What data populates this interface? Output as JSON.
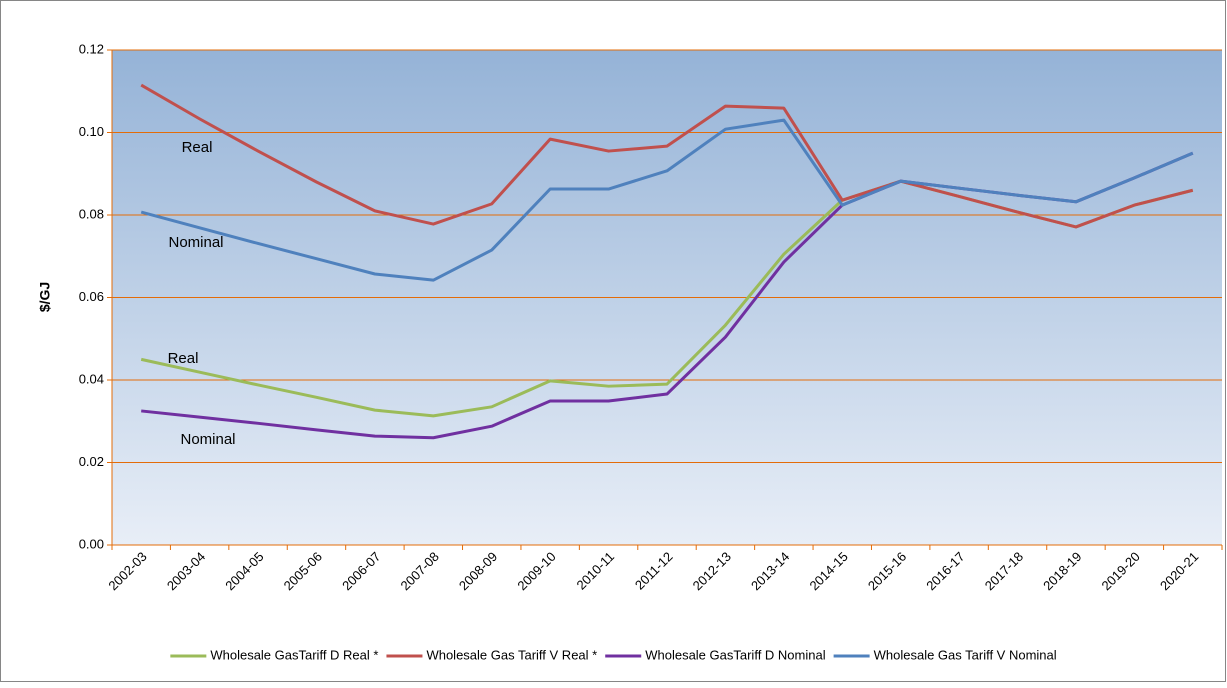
{
  "chart_data": {
    "type": "line",
    "ylabel": "$/GJ",
    "categories": [
      "2002-03",
      "2003-04",
      "2004-05",
      "2005-06",
      "2006-07",
      "2007-08",
      "2008-09",
      "2009-10",
      "2010-11",
      "2011-12",
      "2012-13",
      "2013-14",
      "2014-15",
      "2015-16",
      "2016-17",
      "2017-18",
      "2018-19",
      "2019-20",
      "2020-21"
    ],
    "series": [
      {
        "name": "Wholesale GasTariff D Real *",
        "color": "#9bbb59",
        "values": [
          0.045,
          0.0419,
          0.0388,
          0.0358,
          0.0327,
          0.0313,
          0.0335,
          0.0398,
          0.0385,
          0.039,
          0.0533,
          0.0705,
          0.0836,
          0.0882,
          0.0845,
          0.0807,
          0.0771,
          0.0824,
          0.086
        ]
      },
      {
        "name": "Wholesale Gas Tariff V Real *",
        "color": "#c0504d",
        "values": [
          0.1115,
          0.1033,
          0.0955,
          0.088,
          0.081,
          0.0778,
          0.0827,
          0.0984,
          0.0955,
          0.0967,
          0.1064,
          0.1059,
          0.0836,
          0.0882,
          0.0845,
          0.0807,
          0.0771,
          0.0824,
          0.086
        ]
      },
      {
        "name": "Wholesale GasTariff D Nominal",
        "color": "#7030a0",
        "values": [
          0.0325,
          0.031,
          0.0295,
          0.0279,
          0.0264,
          0.026,
          0.0288,
          0.0349,
          0.0349,
          0.0366,
          0.0504,
          0.0686,
          0.0824,
          0.0882,
          0.0865,
          0.0848,
          0.0832,
          0.089,
          0.095
        ]
      },
      {
        "name": "Wholesale Gas Tariff V Nominal",
        "color": "#4f81bd",
        "values": [
          0.0807,
          0.0769,
          0.0731,
          0.0694,
          0.0657,
          0.0642,
          0.0715,
          0.0863,
          0.0863,
          0.0907,
          0.1008,
          0.103,
          0.0824,
          0.0882,
          0.0865,
          0.0848,
          0.0832,
          0.089,
          0.095
        ]
      }
    ],
    "annotations": [
      "Real",
      "Nominal",
      "Real",
      "Nominal"
    ],
    "ylim": [
      0,
      0.12
    ],
    "yticks": [
      {
        "value": 0,
        "label": "0.00"
      },
      0.02,
      0.04,
      0.06,
      0.08,
      {
        "value": 0.1,
        "label": "0.10"
      },
      0.12
    ],
    "grid": true,
    "grid_color": "#e36c09",
    "legend": "bottom"
  }
}
